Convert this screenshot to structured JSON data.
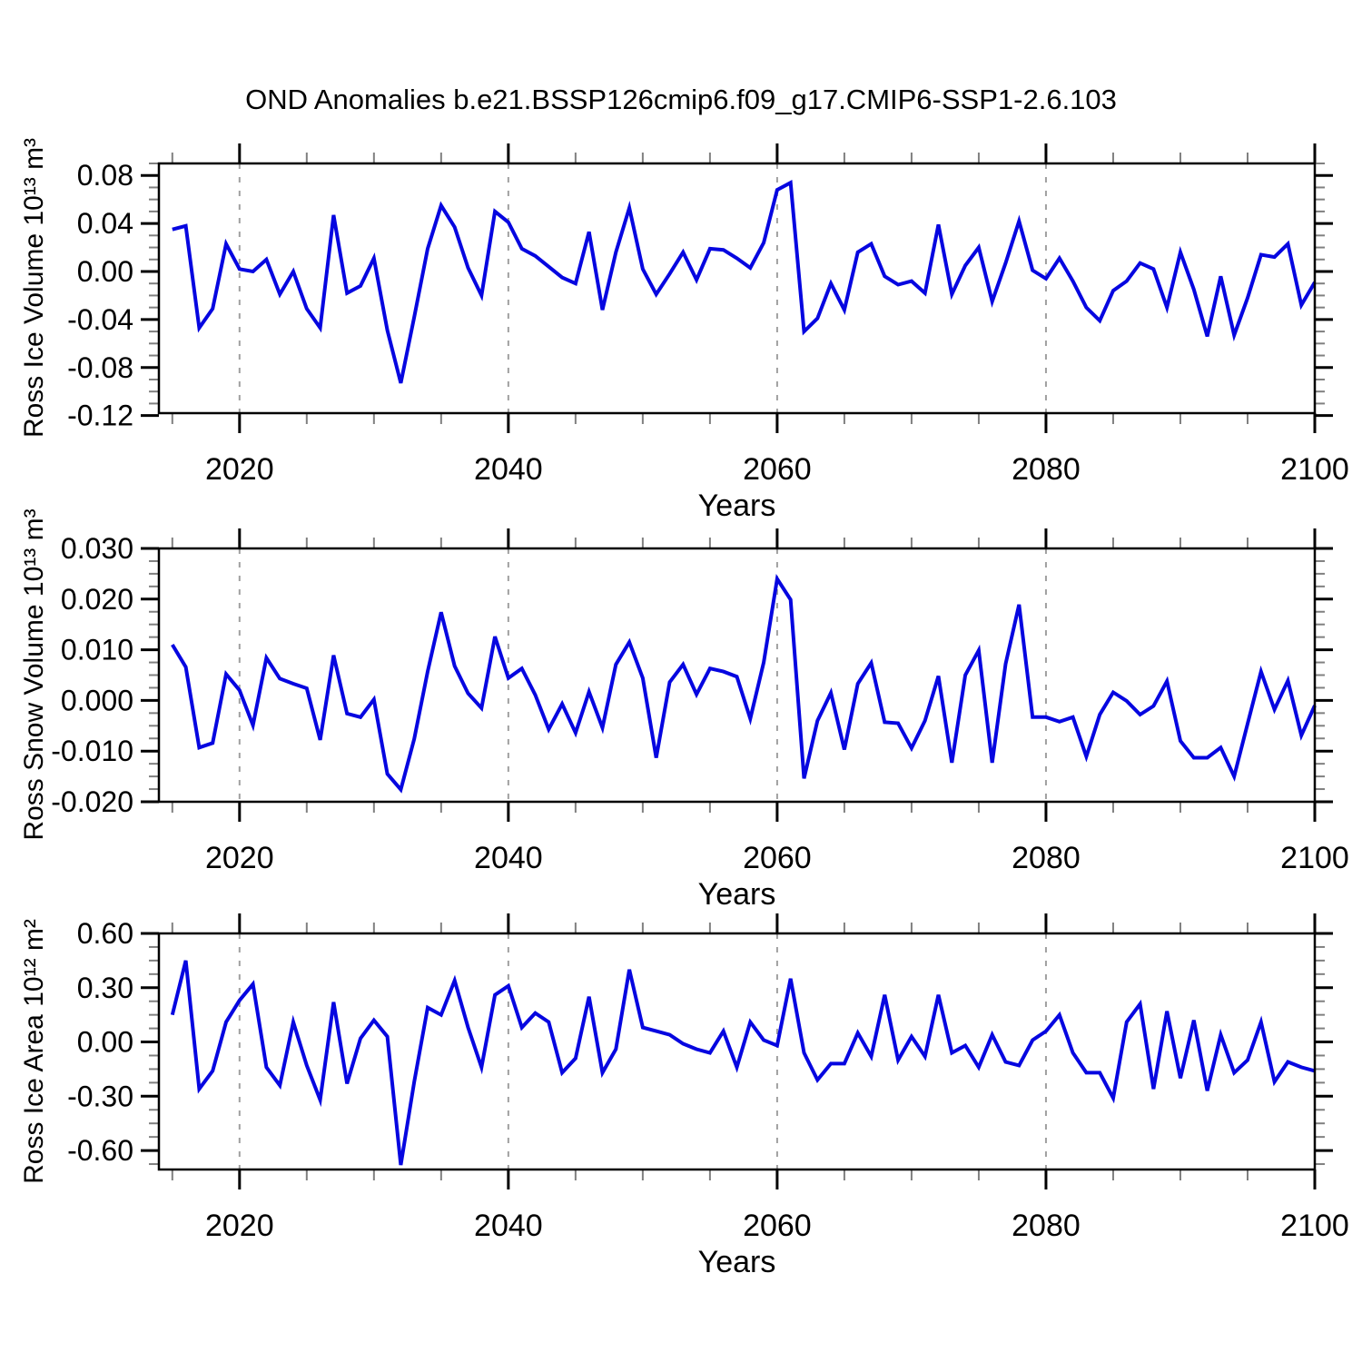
{
  "title": "OND Anomalies b.e21.BSSP126cmip6.f09_g17.CMIP6-SSP1-2.6.103",
  "line_color": "#0606e0",
  "grid_color": "#a0a0a0",
  "minor_tick_color": "#808080",
  "axis_color": "#000000",
  "chart_data": [
    {
      "type": "line",
      "ylabel": "Ross Ice Volume 10¹³ m³",
      "xlabel": "Years",
      "x_start": 2015,
      "x_step": 1,
      "xlim": [
        2014,
        2100
      ],
      "ylim": [
        -0.118,
        0.09
      ],
      "xticks": [
        2020,
        2040,
        2060,
        2080,
        2100
      ],
      "xtick_labels": [
        "2020",
        "2040",
        "2060",
        "2080",
        "2100"
      ],
      "xminor_step": 5,
      "grid_x": [
        2020,
        2040,
        2060,
        2080
      ],
      "yticks": [
        0.08,
        0.04,
        0.0,
        -0.04,
        -0.08,
        -0.12
      ],
      "ytick_labels": [
        "0.08",
        "0.04",
        "0.00",
        "-0.04",
        "-0.08",
        "-0.12"
      ],
      "yminor_step": 0.01,
      "values": [
        0.035,
        0.038,
        -0.047,
        -0.031,
        0.023,
        0.002,
        0.0,
        0.01,
        -0.019,
        0.0,
        -0.031,
        -0.047,
        0.047,
        -0.018,
        -0.012,
        0.011,
        -0.049,
        -0.093,
        -0.038,
        0.019,
        0.055,
        0.037,
        0.003,
        -0.02,
        0.05,
        0.041,
        0.019,
        0.013,
        0.004,
        -0.005,
        -0.01,
        0.033,
        -0.032,
        0.016,
        0.053,
        0.002,
        -0.019,
        -0.002,
        0.016,
        -0.007,
        0.019,
        0.018,
        0.011,
        0.003,
        0.024,
        0.068,
        0.074,
        -0.05,
        -0.039,
        -0.01,
        -0.032,
        0.016,
        0.023,
        -0.004,
        -0.011,
        -0.008,
        -0.018,
        0.039,
        -0.019,
        0.005,
        0.02,
        -0.025,
        0.007,
        0.042,
        0.001,
        -0.006,
        0.011,
        -0.008,
        -0.03,
        -0.041,
        -0.016,
        -0.008,
        0.007,
        0.002,
        -0.03,
        0.016,
        -0.015,
        -0.054,
        -0.004,
        -0.053,
        -0.022,
        0.014,
        0.012,
        0.023,
        -0.028,
        -0.009
      ]
    },
    {
      "type": "line",
      "ylabel": "Ross Snow Volume 10¹³ m³",
      "xlabel": "Years",
      "x_start": 2015,
      "x_step": 1,
      "xlim": [
        2014,
        2100
      ],
      "ylim": [
        -0.02,
        0.03
      ],
      "xticks": [
        2020,
        2040,
        2060,
        2080,
        2100
      ],
      "xtick_labels": [
        "2020",
        "2040",
        "2060",
        "2080",
        "2100"
      ],
      "xminor_step": 5,
      "grid_x": [
        2020,
        2040,
        2060,
        2080
      ],
      "yticks": [
        0.03,
        0.02,
        0.01,
        0.0,
        -0.01,
        -0.02
      ],
      "ytick_labels": [
        "0.030",
        "0.020",
        "0.010",
        "0.000",
        "-0.010",
        "-0.020"
      ],
      "yminor_step": 0.0025,
      "values": [
        0.011,
        0.0066,
        -0.0093,
        -0.0084,
        0.0052,
        0.002,
        -0.0049,
        0.0084,
        0.0043,
        0.0033,
        0.0024,
        -0.0078,
        0.0089,
        -0.0026,
        -0.0033,
        0.0002,
        -0.0145,
        -0.0176,
        -0.0076,
        0.0057,
        0.0174,
        0.0068,
        0.0014,
        -0.0015,
        0.0126,
        0.0044,
        0.0063,
        0.0011,
        -0.0057,
        -0.0007,
        -0.0064,
        0.0017,
        -0.0054,
        0.0071,
        0.0115,
        0.0044,
        -0.0113,
        0.0036,
        0.0071,
        0.0012,
        0.0063,
        0.0057,
        0.0047,
        -0.0036,
        0.0075,
        0.024,
        0.0199,
        -0.0154,
        -0.004,
        0.0015,
        -0.0097,
        0.0033,
        0.0074,
        -0.0043,
        -0.0045,
        -0.0094,
        -0.004,
        0.0048,
        -0.0123,
        0.005,
        0.0099,
        -0.0123,
        0.0072,
        0.0189,
        -0.0033,
        -0.0033,
        -0.0042,
        -0.0033,
        -0.0111,
        -0.0028,
        0.0016,
        -0.0001,
        -0.0028,
        -0.0011,
        0.0038,
        -0.008,
        -0.0113,
        -0.0113,
        -0.0093,
        -0.015,
        -0.0046,
        0.0057,
        -0.0018,
        0.0039,
        -0.0069,
        -0.001
      ]
    },
    {
      "type": "line",
      "ylabel": "Ross Ice Area 10¹² m²",
      "xlabel": "Years",
      "x_start": 2015,
      "x_step": 1,
      "xlim": [
        2014,
        2100
      ],
      "ylim": [
        -0.705,
        0.6
      ],
      "xticks": [
        2020,
        2040,
        2060,
        2080,
        2100
      ],
      "xtick_labels": [
        "2020",
        "2040",
        "2060",
        "2080",
        "2100"
      ],
      "xminor_step": 5,
      "grid_x": [
        2020,
        2040,
        2060,
        2080
      ],
      "yticks": [
        0.6,
        0.3,
        0.0,
        -0.3,
        -0.6
      ],
      "ytick_labels": [
        "0.60",
        "0.30",
        "0.00",
        "-0.30",
        "-0.60"
      ],
      "yminor_step": 0.075,
      "values": [
        0.15,
        0.45,
        -0.26,
        -0.16,
        0.11,
        0.23,
        0.32,
        -0.14,
        -0.24,
        0.11,
        -0.13,
        -0.32,
        0.22,
        -0.23,
        0.02,
        0.12,
        0.03,
        -0.68,
        -0.22,
        0.19,
        0.15,
        0.34,
        0.08,
        -0.14,
        0.26,
        0.31,
        0.08,
        0.16,
        0.11,
        -0.17,
        -0.09,
        0.25,
        -0.17,
        -0.04,
        0.4,
        0.08,
        0.06,
        0.04,
        -0.01,
        -0.04,
        -0.06,
        0.06,
        -0.14,
        0.11,
        0.01,
        -0.02,
        0.35,
        -0.06,
        -0.21,
        -0.12,
        -0.12,
        0.05,
        -0.08,
        0.26,
        -0.1,
        0.03,
        -0.08,
        0.26,
        -0.06,
        -0.02,
        -0.14,
        0.04,
        -0.11,
        -0.13,
        0.01,
        0.06,
        0.15,
        -0.06,
        -0.17,
        -0.17,
        -0.31,
        0.11,
        0.21,
        -0.26,
        0.17,
        -0.2,
        0.12,
        -0.27,
        0.04,
        -0.17,
        -0.1,
        0.11,
        -0.22,
        -0.11,
        -0.14,
        -0.16
      ]
    }
  ]
}
